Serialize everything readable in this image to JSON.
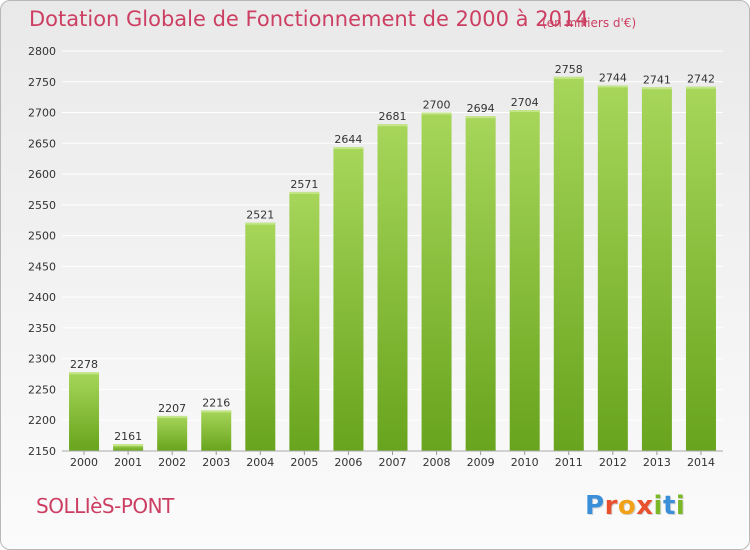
{
  "header": {
    "title": "Dotation Globale de Fonctionnement de 2000 à 2014",
    "unit_note": "(en milliers d'€)"
  },
  "footer": {
    "commune": "SOLLIèS-PONT",
    "brand_letters": [
      {
        "ch": "P",
        "color": "#3a8fd8"
      },
      {
        "ch": "r",
        "color": "#e8502e"
      },
      {
        "ch": "o",
        "color": "#f2a21a"
      },
      {
        "ch": "x",
        "color": "#e8502e"
      },
      {
        "ch": "i",
        "color": "#7ab828"
      },
      {
        "ch": "t",
        "color": "#3a8fd8"
      },
      {
        "ch": "i",
        "color": "#7ab828"
      }
    ]
  },
  "chart_data": {
    "type": "bar",
    "title": "Dotation Globale de Fonctionnement de 2000 à 2014",
    "subtitle": "(en milliers d'€)",
    "categories": [
      "2000",
      "2001",
      "2002",
      "2003",
      "2004",
      "2005",
      "2006",
      "2007",
      "2008",
      "2009",
      "2010",
      "2011",
      "2012",
      "2013",
      "2014"
    ],
    "values": [
      2278,
      2161,
      2207,
      2216,
      2521,
      2571,
      2644,
      2681,
      2700,
      2694,
      2704,
      2758,
      2744,
      2741,
      2742
    ],
    "ylim": [
      2150,
      2800
    ],
    "yticks": [
      2150,
      2200,
      2250,
      2300,
      2350,
      2400,
      2450,
      2500,
      2550,
      2600,
      2650,
      2700,
      2750,
      2800
    ],
    "grid": true,
    "data_labels": true,
    "colors": {
      "bar_light": "#9fd14e",
      "bar_dark": "#6aa61f",
      "grid": "#ffffff",
      "axis_text": "#333333"
    }
  }
}
